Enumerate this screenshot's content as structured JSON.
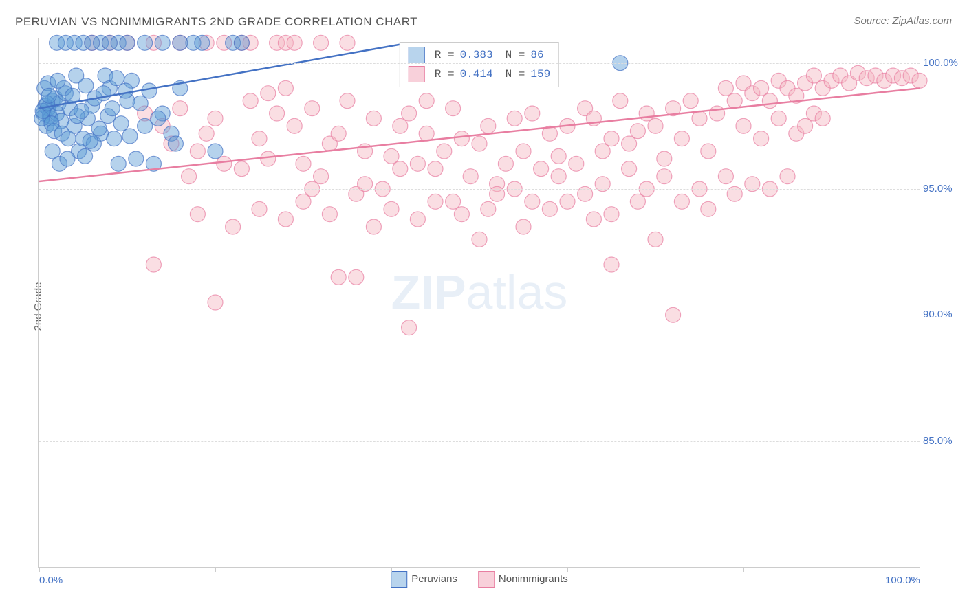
{
  "title": "PERUVIAN VS NONIMMIGRANTS 2ND GRADE CORRELATION CHART",
  "source": "Source: ZipAtlas.com",
  "ylabel": "2nd Grade",
  "watermark": {
    "bold": "ZIP",
    "light": "atlas"
  },
  "chart": {
    "type": "scatter",
    "xlim": [
      0,
      100
    ],
    "ylim": [
      80,
      101
    ],
    "yticks": [
      85,
      90,
      95,
      100
    ],
    "ytick_labels": [
      "85.0%",
      "90.0%",
      "95.0%",
      "100.0%"
    ],
    "xtick_positions": [
      0,
      20,
      40,
      60,
      80,
      100
    ],
    "xticks_labeled": [
      {
        "pos": 0,
        "label": "0.0%"
      },
      {
        "pos": 100,
        "label": "100.0%"
      }
    ],
    "background_color": "#ffffff",
    "grid_color": "#dddddd",
    "marker_radius": 11,
    "marker_opacity": 0.45,
    "line_width": 2.5,
    "series": [
      {
        "name": "Peruvians",
        "color": "#5b9bd5",
        "stroke": "#4472c4",
        "R": "0.383",
        "N": "86",
        "trend": {
          "x1": 0,
          "y1": 98.2,
          "x2": 42,
          "y2": 100.8
        },
        "points": [
          [
            0.5,
            98.0
          ],
          [
            0.7,
            98.3
          ],
          [
            1.0,
            98.2
          ],
          [
            1.2,
            97.9
          ],
          [
            1.5,
            98.5
          ],
          [
            1.8,
            98.6
          ],
          [
            0.8,
            97.5
          ],
          [
            1.3,
            97.8
          ],
          [
            2.0,
            98.0
          ],
          [
            2.2,
            98.4
          ],
          [
            2.5,
            97.7
          ],
          [
            3.0,
            98.8
          ],
          [
            0.6,
            99.0
          ],
          [
            1.0,
            99.2
          ],
          [
            2.8,
            99.0
          ],
          [
            3.5,
            98.2
          ],
          [
            4.0,
            97.5
          ],
          [
            4.5,
            96.5
          ],
          [
            5.0,
            97.0
          ],
          [
            5.5,
            97.8
          ],
          [
            6.0,
            98.3
          ],
          [
            6.2,
            96.8
          ],
          [
            7.0,
            97.2
          ],
          [
            7.5,
            99.5
          ],
          [
            2.0,
            100.8
          ],
          [
            3.0,
            100.8
          ],
          [
            4.0,
            100.8
          ],
          [
            5.0,
            100.8
          ],
          [
            6.0,
            100.8
          ],
          [
            7.0,
            100.8
          ],
          [
            8.0,
            100.8
          ],
          [
            9.0,
            100.8
          ],
          [
            10.0,
            100.8
          ],
          [
            12.0,
            100.8
          ],
          [
            14.0,
            100.8
          ],
          [
            16.0,
            100.8
          ],
          [
            17.5,
            100.8
          ],
          [
            18.5,
            100.8
          ],
          [
            22.0,
            100.8
          ],
          [
            23.0,
            100.8
          ],
          [
            8.0,
            99.0
          ],
          [
            8.5,
            97.0
          ],
          [
            9.0,
            96.0
          ],
          [
            10.0,
            98.5
          ],
          [
            10.5,
            99.3
          ],
          [
            11.0,
            96.2
          ],
          [
            12.0,
            97.5
          ],
          [
            12.5,
            98.9
          ],
          [
            13.0,
            96.0
          ],
          [
            14.0,
            98.0
          ],
          [
            15.0,
            97.2
          ],
          [
            15.5,
            96.8
          ],
          [
            16.0,
            99.0
          ],
          [
            1.5,
            96.5
          ],
          [
            2.3,
            96.0
          ],
          [
            3.2,
            96.2
          ],
          [
            4.2,
            99.5
          ],
          [
            5.2,
            96.3
          ],
          [
            0.3,
            97.8
          ],
          [
            0.4,
            98.1
          ],
          [
            0.9,
            98.4
          ],
          [
            1.1,
            98.7
          ],
          [
            1.4,
            97.6
          ],
          [
            1.7,
            97.3
          ],
          [
            2.1,
            99.3
          ],
          [
            2.6,
            97.2
          ],
          [
            3.3,
            97.0
          ],
          [
            3.8,
            98.7
          ],
          [
            4.3,
            97.9
          ],
          [
            4.8,
            98.1
          ],
          [
            5.3,
            99.1
          ],
          [
            5.8,
            96.9
          ],
          [
            6.3,
            98.6
          ],
          [
            6.8,
            97.4
          ],
          [
            7.3,
            98.8
          ],
          [
            7.8,
            97.9
          ],
          [
            8.3,
            98.2
          ],
          [
            8.8,
            99.4
          ],
          [
            9.3,
            97.6
          ],
          [
            9.8,
            98.9
          ],
          [
            10.3,
            97.1
          ],
          [
            11.5,
            98.4
          ],
          [
            13.5,
            97.8
          ],
          [
            20.0,
            96.5
          ],
          [
            66.0,
            100.0
          ]
        ]
      },
      {
        "name": "Nonimmigrants",
        "color": "#f4b6c2",
        "stroke": "#e87ea1",
        "R": "0.414",
        "N": "159",
        "trend": {
          "x1": 0,
          "y1": 95.3,
          "x2": 100,
          "y2": 99.0
        },
        "points": [
          [
            6,
            100.8
          ],
          [
            8,
            100.8
          ],
          [
            10,
            100.8
          ],
          [
            13,
            100.8
          ],
          [
            16,
            100.8
          ],
          [
            19,
            100.8
          ],
          [
            21,
            100.8
          ],
          [
            23,
            100.8
          ],
          [
            24,
            100.8
          ],
          [
            27,
            100.8
          ],
          [
            28,
            100.8
          ],
          [
            29,
            100.8
          ],
          [
            32,
            100.8
          ],
          [
            35,
            100.8
          ],
          [
            13,
            92.0
          ],
          [
            18,
            94.0
          ],
          [
            20,
            90.5
          ],
          [
            22,
            93.5
          ],
          [
            24,
            98.5
          ],
          [
            25,
            97.0
          ],
          [
            26,
            96.2
          ],
          [
            27,
            98.0
          ],
          [
            28,
            99.0
          ],
          [
            29,
            97.5
          ],
          [
            30,
            96.0
          ],
          [
            31,
            98.2
          ],
          [
            32,
            95.5
          ],
          [
            33,
            96.8
          ],
          [
            34,
            97.2
          ],
          [
            34,
            91.5
          ],
          [
            35,
            98.5
          ],
          [
            36,
            91.5
          ],
          [
            37,
            96.5
          ],
          [
            38,
            97.8
          ],
          [
            39,
            95.0
          ],
          [
            40,
            96.3
          ],
          [
            41,
            97.5
          ],
          [
            42,
            98.0
          ],
          [
            42,
            89.5
          ],
          [
            43,
            96.0
          ],
          [
            44,
            97.2
          ],
          [
            45,
            95.8
          ],
          [
            46,
            96.5
          ],
          [
            47,
            98.2
          ],
          [
            48,
            97.0
          ],
          [
            49,
            95.5
          ],
          [
            50,
            96.8
          ],
          [
            51,
            97.5
          ],
          [
            52,
            95.2
          ],
          [
            53,
            96.0
          ],
          [
            54,
            97.8
          ],
          [
            55,
            96.5
          ],
          [
            56,
            98.0
          ],
          [
            57,
            95.8
          ],
          [
            58,
            97.2
          ],
          [
            59,
            96.3
          ],
          [
            60,
            97.5
          ],
          [
            61,
            96.0
          ],
          [
            62,
            98.2
          ],
          [
            63,
            97.8
          ],
          [
            64,
            96.5
          ],
          [
            65,
            97.0
          ],
          [
            66,
            98.5
          ],
          [
            67,
            96.8
          ],
          [
            68,
            97.3
          ],
          [
            69,
            98.0
          ],
          [
            70,
            97.5
          ],
          [
            71,
            96.2
          ],
          [
            72,
            98.2
          ],
          [
            73,
            97.0
          ],
          [
            74,
            98.5
          ],
          [
            75,
            97.8
          ],
          [
            76,
            96.5
          ],
          [
            77,
            98.0
          ],
          [
            78,
            99.0
          ],
          [
            79,
            98.5
          ],
          [
            80,
            99.2
          ],
          [
            81,
            98.8
          ],
          [
            82,
            99.0
          ],
          [
            83,
            98.5
          ],
          [
            84,
            99.3
          ],
          [
            85,
            99.0
          ],
          [
            86,
            98.7
          ],
          [
            87,
            99.2
          ],
          [
            88,
            99.5
          ],
          [
            89,
            99.0
          ],
          [
            90,
            99.3
          ],
          [
            91,
            99.5
          ],
          [
            92,
            99.2
          ],
          [
            93,
            99.6
          ],
          [
            94,
            99.4
          ],
          [
            95,
            99.5
          ],
          [
            96,
            99.3
          ],
          [
            97,
            99.5
          ],
          [
            98,
            99.4
          ],
          [
            99,
            99.5
          ],
          [
            100,
            99.3
          ],
          [
            25,
            94.2
          ],
          [
            28,
            93.8
          ],
          [
            30,
            94.5
          ],
          [
            33,
            94.0
          ],
          [
            36,
            94.8
          ],
          [
            38,
            93.5
          ],
          [
            40,
            94.2
          ],
          [
            43,
            93.8
          ],
          [
            45,
            94.5
          ],
          [
            48,
            94.0
          ],
          [
            50,
            93.0
          ],
          [
            52,
            94.8
          ],
          [
            55,
            93.5
          ],
          [
            58,
            94.2
          ],
          [
            60,
            94.5
          ],
          [
            63,
            93.8
          ],
          [
            65,
            94.0
          ],
          [
            68,
            94.5
          ],
          [
            70,
            93.0
          ],
          [
            65,
            92.0
          ],
          [
            72,
            90.0
          ],
          [
            15,
            96.8
          ],
          [
            17,
            95.5
          ],
          [
            19,
            97.2
          ],
          [
            21,
            96.0
          ],
          [
            23,
            95.8
          ],
          [
            26,
            98.8
          ],
          [
            31,
            95.0
          ],
          [
            37,
            95.2
          ],
          [
            41,
            95.8
          ],
          [
            44,
            98.5
          ],
          [
            47,
            94.5
          ],
          [
            51,
            94.2
          ],
          [
            54,
            95.0
          ],
          [
            56,
            94.5
          ],
          [
            59,
            95.5
          ],
          [
            62,
            94.8
          ],
          [
            64,
            95.2
          ],
          [
            67,
            95.8
          ],
          [
            69,
            95.0
          ],
          [
            71,
            95.5
          ],
          [
            73,
            94.5
          ],
          [
            75,
            95.0
          ],
          [
            76,
            94.2
          ],
          [
            78,
            95.5
          ],
          [
            79,
            94.8
          ],
          [
            81,
            95.2
          ],
          [
            83,
            95.0
          ],
          [
            85,
            95.5
          ],
          [
            80,
            97.5
          ],
          [
            82,
            97.0
          ],
          [
            84,
            97.8
          ],
          [
            86,
            97.2
          ],
          [
            87,
            97.5
          ],
          [
            88,
            98.0
          ],
          [
            89,
            97.8
          ],
          [
            12,
            98.0
          ],
          [
            14,
            97.5
          ],
          [
            16,
            98.2
          ],
          [
            18,
            96.5
          ],
          [
            20,
            97.8
          ]
        ]
      }
    ],
    "stats_box": {
      "rows": [
        {
          "swatch_fill": "#b8d4ed",
          "swatch_stroke": "#4472c4",
          "r_label": "R =",
          "r_val": "0.383",
          "n_label": "N =",
          "n_val": " 86"
        },
        {
          "swatch_fill": "#f8d0da",
          "swatch_stroke": "#e87ea1",
          "r_label": "R =",
          "r_val": "0.414",
          "n_label": "N =",
          "n_val": "159"
        }
      ]
    },
    "bottom_legend": [
      {
        "fill": "#b8d4ed",
        "stroke": "#4472c4",
        "label": "Peruvians"
      },
      {
        "fill": "#f8d0da",
        "stroke": "#e87ea1",
        "label": "Nonimmigrants"
      }
    ]
  }
}
